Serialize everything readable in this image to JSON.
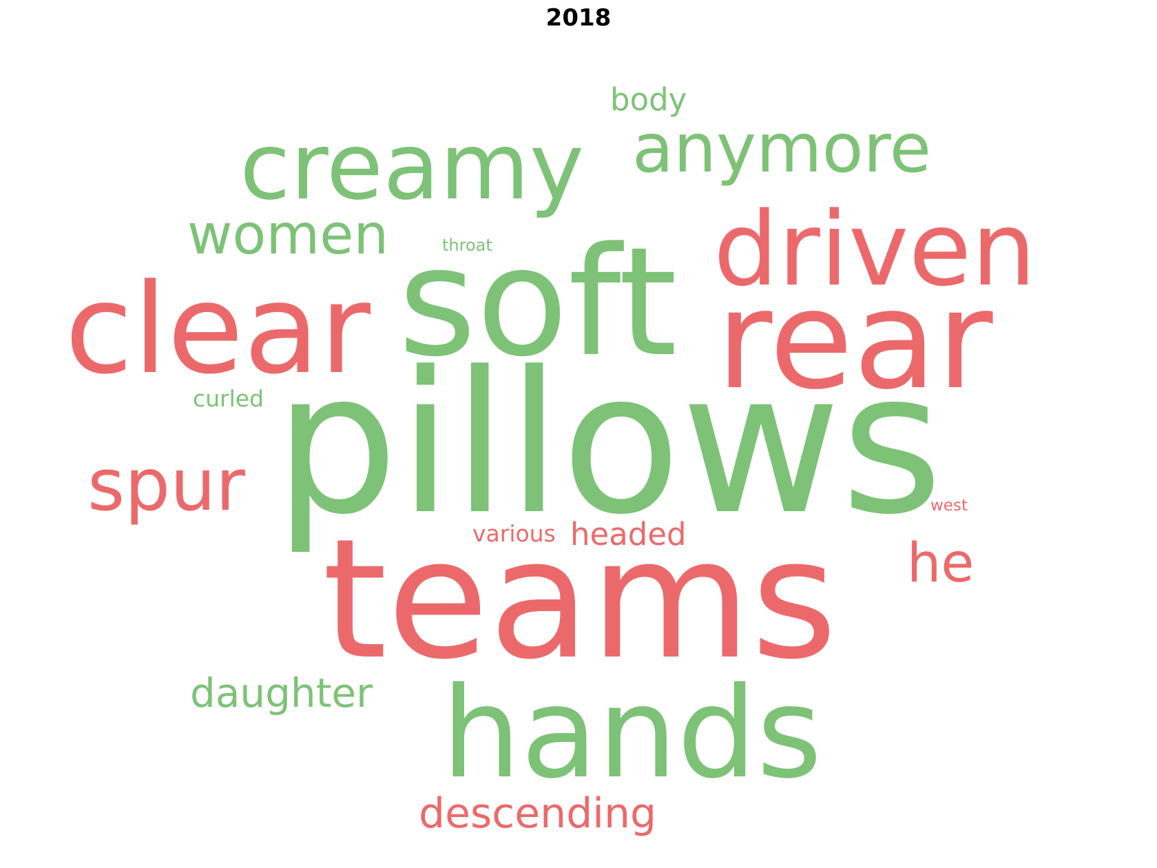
{
  "chart_data": {
    "type": "wordcloud",
    "title": "2018",
    "colors": {
      "positive": "#7dc277",
      "negative": "#ec696b"
    },
    "words": [
      {
        "text": "pillows",
        "group": "positive"
      },
      {
        "text": "teams",
        "group": "negative"
      },
      {
        "text": "soft",
        "group": "positive"
      },
      {
        "text": "rear",
        "group": "negative"
      },
      {
        "text": "clear",
        "group": "negative"
      },
      {
        "text": "hands",
        "group": "positive"
      },
      {
        "text": "creamy",
        "group": "positive"
      },
      {
        "text": "driven",
        "group": "negative"
      },
      {
        "text": "anymore",
        "group": "positive"
      },
      {
        "text": "spur",
        "group": "negative"
      },
      {
        "text": "women",
        "group": "positive"
      },
      {
        "text": "he",
        "group": "negative"
      },
      {
        "text": "daughter",
        "group": "positive"
      },
      {
        "text": "descending",
        "group": "negative"
      },
      {
        "text": "headed",
        "group": "negative"
      },
      {
        "text": "body",
        "group": "positive"
      },
      {
        "text": "curled",
        "group": "positive"
      },
      {
        "text": "various",
        "group": "negative"
      },
      {
        "text": "throat",
        "group": "positive"
      },
      {
        "text": "west",
        "group": "negative"
      }
    ]
  }
}
